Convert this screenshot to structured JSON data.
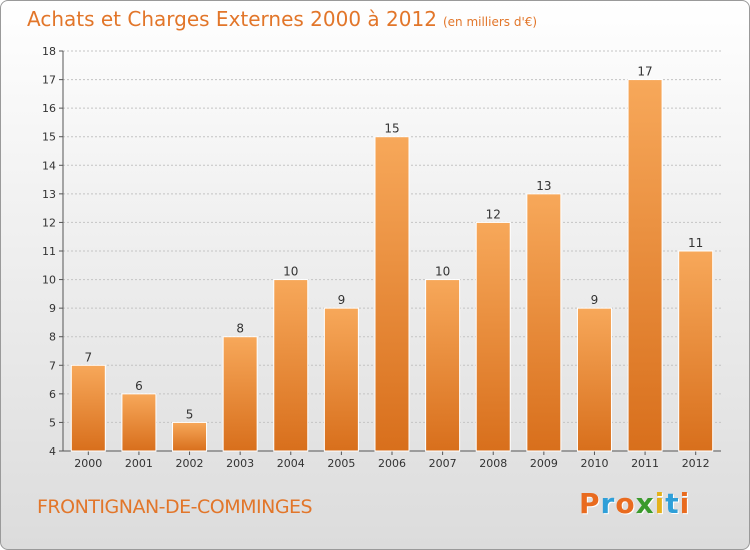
{
  "header": {
    "title": "Achats et Charges Externes 2000 à 2012",
    "unit": "(en milliers d'€)"
  },
  "footer": {
    "city": "FRONTIGNAN-DE-COMMINGES",
    "logo": "Proxiti"
  },
  "colors": {
    "accent": "#e2762a",
    "bar_top": "#f7a85a",
    "bar_bottom": "#d86f1c",
    "logo_letters": [
      "#e96b1f",
      "#2f9fd8",
      "#e96b1f",
      "#3a9a2c",
      "#e4b11c",
      "#2f9fd8",
      "#e96b1f"
    ]
  },
  "chart_data": {
    "type": "bar",
    "title": "Achats et Charges Externes 2000 à 2012",
    "subtitle": "(en milliers d'€)",
    "categories": [
      "2000",
      "2001",
      "2002",
      "2003",
      "2004",
      "2005",
      "2006",
      "2007",
      "2008",
      "2009",
      "2010",
      "2011",
      "2012"
    ],
    "values": [
      7,
      6,
      5,
      8,
      10,
      9,
      15,
      10,
      12,
      13,
      9,
      17,
      11
    ],
    "ylim": [
      4,
      18
    ],
    "yticks": [
      4,
      5,
      6,
      7,
      8,
      9,
      10,
      11,
      12,
      13,
      14,
      15,
      16,
      17,
      18
    ],
    "grid": true,
    "data_labels": true
  }
}
